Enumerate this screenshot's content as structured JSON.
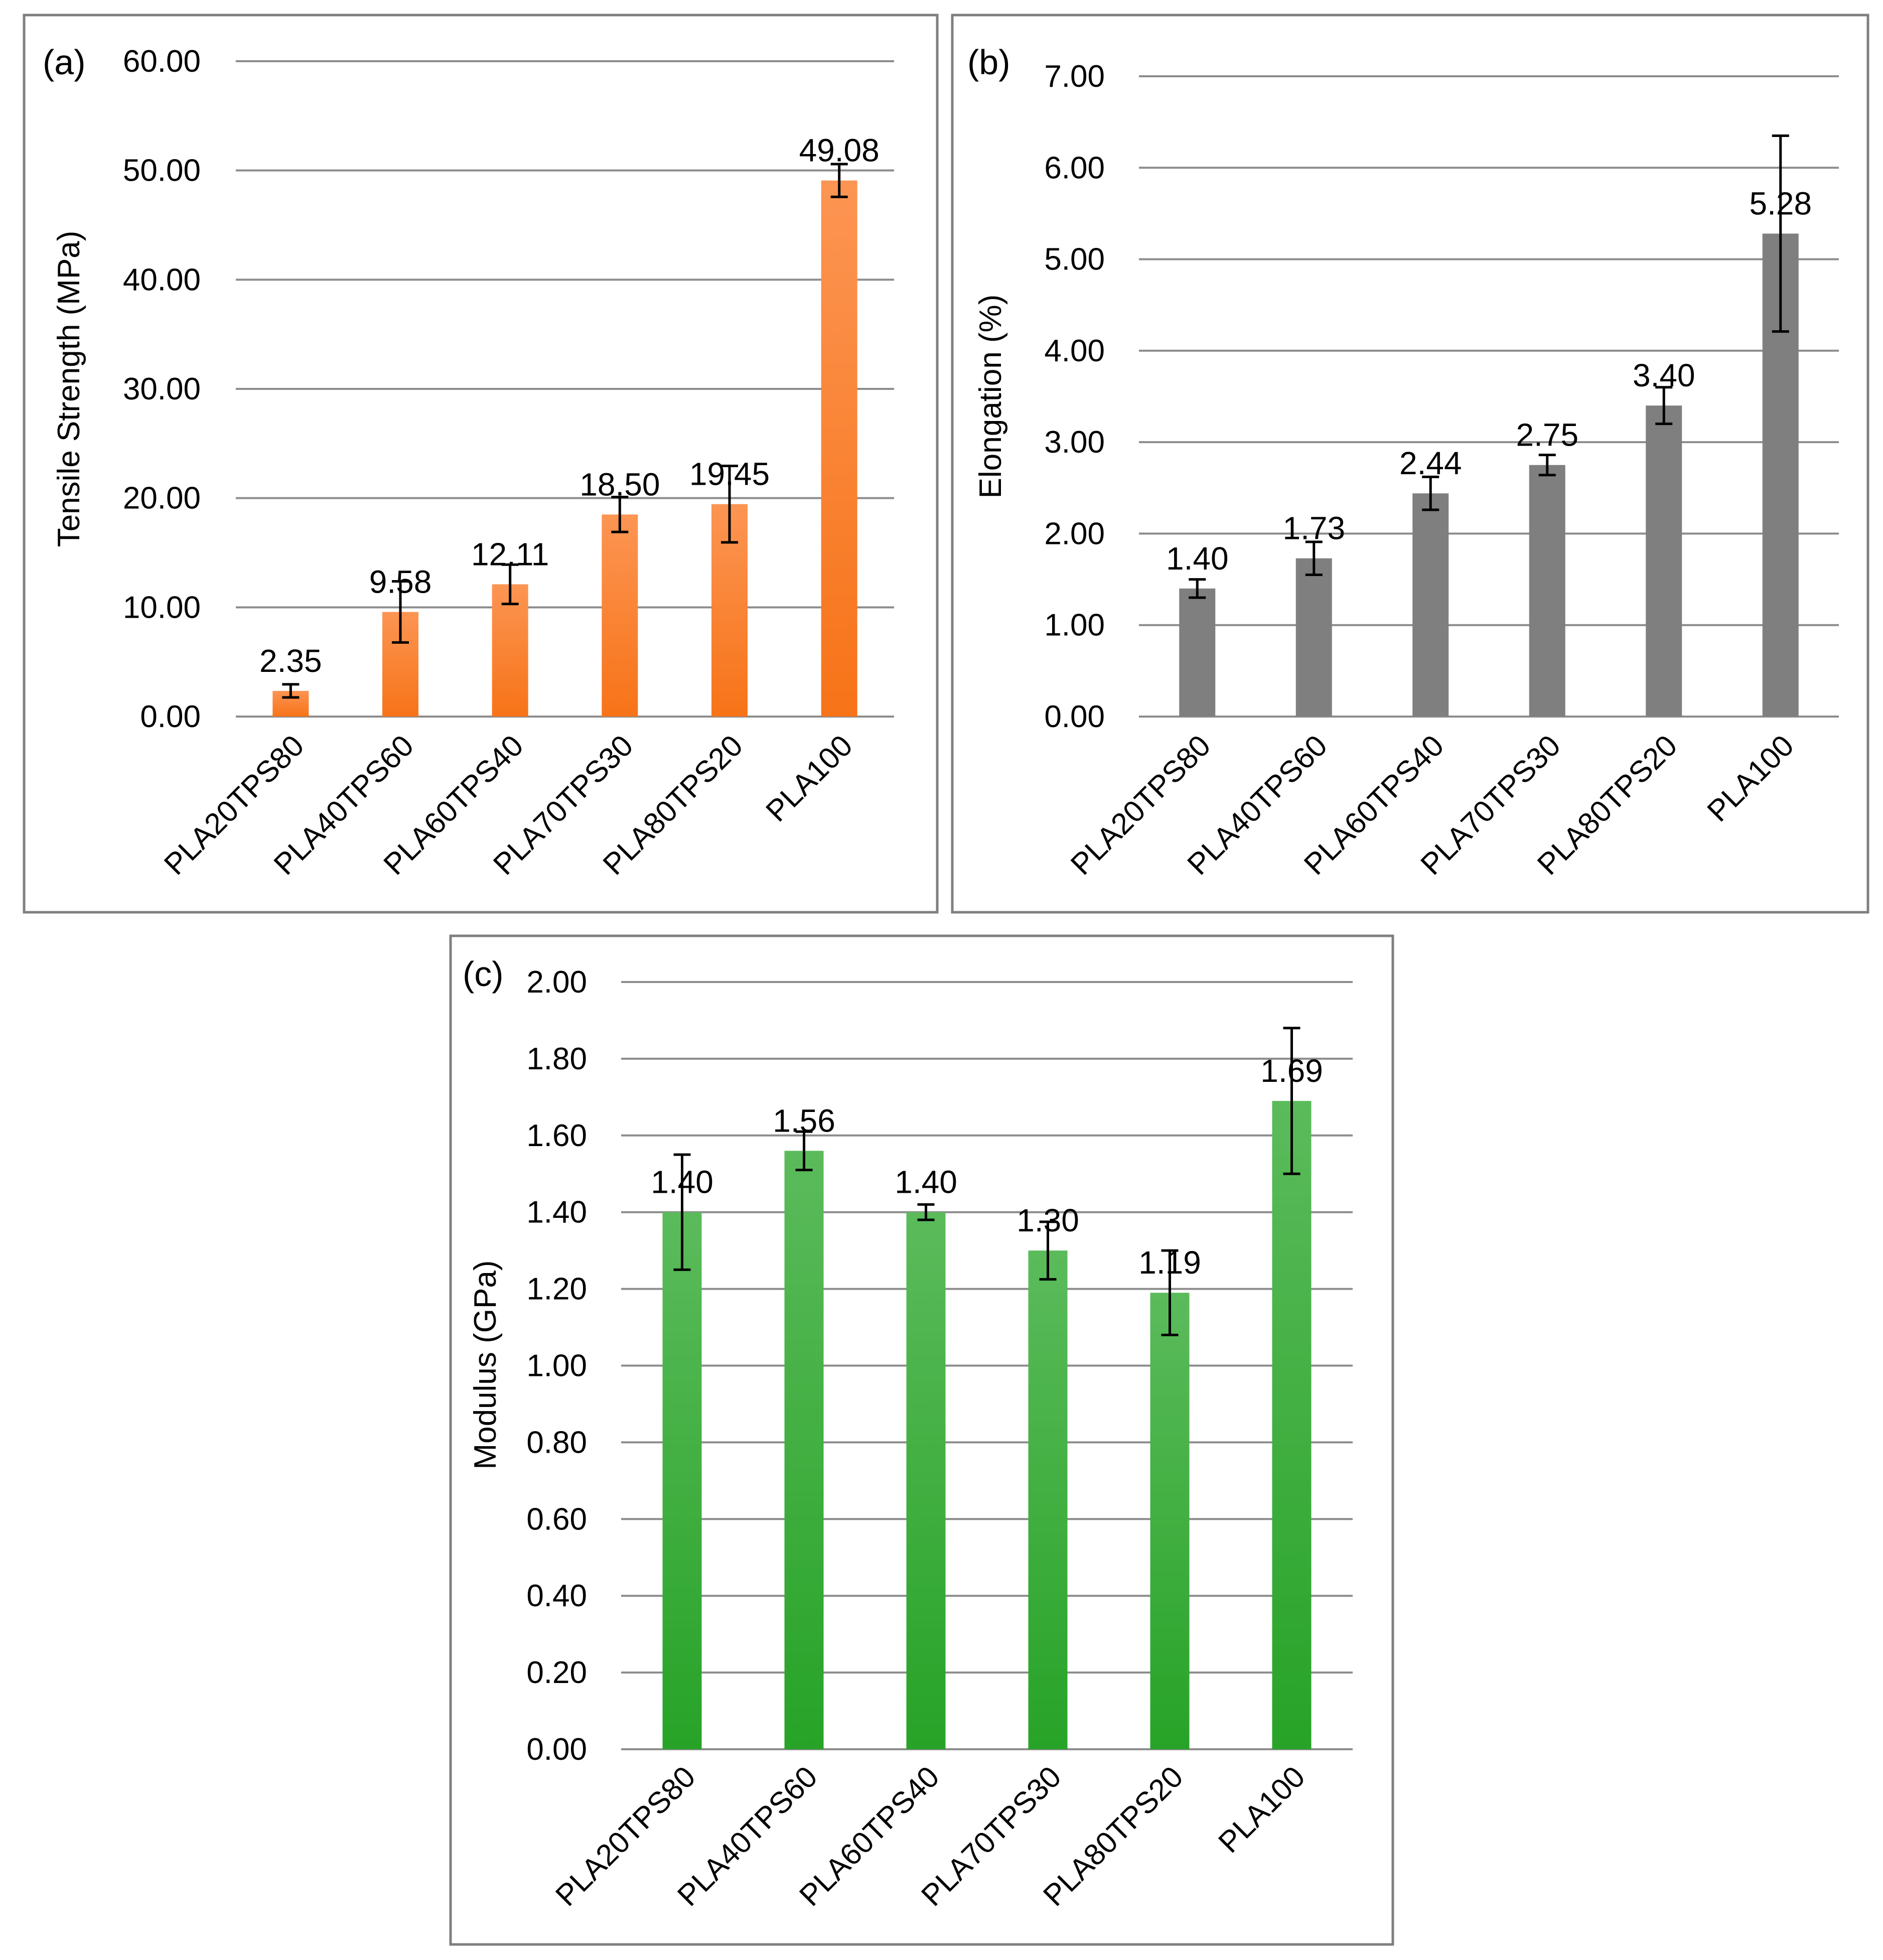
{
  "chart_data": [
    {
      "panel": "(a)",
      "type": "bar",
      "title": "",
      "ylabel": "Tensile Strength (MPa)",
      "xlabel": "",
      "categories": [
        "PLA20TPS80",
        "PLA40TPS60",
        "PLA60TPS40",
        "PLA70TPS30",
        "PLA80TPS20",
        "PLA100"
      ],
      "values": [
        2.35,
        9.58,
        12.11,
        18.5,
        19.45,
        49.08
      ],
      "value_labels": [
        "2.35",
        "9.58",
        "12.11",
        "18.50",
        "19.45",
        "49.08"
      ],
      "error": [
        0.6,
        2.8,
        1.8,
        1.6,
        3.5,
        1.5
      ],
      "ylim": [
        0,
        60
      ],
      "yticks": [
        0,
        10,
        20,
        30,
        40,
        50,
        60
      ],
      "ytick_labels": [
        "0.00",
        "10.00",
        "20.00",
        "30.00",
        "40.00",
        "50.00",
        "60.00"
      ],
      "grid": true,
      "color_top": "#fc9553",
      "color_bottom": "#f77318"
    },
    {
      "panel": "(b)",
      "type": "bar",
      "title": "",
      "ylabel": "Elongation (%)",
      "xlabel": "",
      "categories": [
        "PLA20TPS80",
        "PLA40TPS60",
        "PLA60TPS40",
        "PLA70TPS30",
        "PLA80TPS20",
        "PLA100"
      ],
      "values": [
        1.4,
        1.73,
        2.44,
        2.75,
        3.4,
        5.28
      ],
      "value_labels": [
        "1.40",
        "1.73",
        "2.44",
        "2.75",
        "3.40",
        "5.28"
      ],
      "error": [
        0.1,
        0.18,
        0.18,
        0.11,
        0.2,
        1.07
      ],
      "ylim": [
        0,
        7
      ],
      "yticks": [
        0,
        1,
        2,
        3,
        4,
        5,
        6,
        7
      ],
      "ytick_labels": [
        "0.00",
        "1.00",
        "2.00",
        "3.00",
        "4.00",
        "5.00",
        "6.00",
        "7.00"
      ],
      "grid": true,
      "color_top": "#7f7f7f",
      "color_bottom": "#7f7f7f"
    },
    {
      "panel": "(c)",
      "type": "bar",
      "title": "",
      "ylabel": "Modulus (GPa)",
      "xlabel": "",
      "categories": [
        "PLA20TPS80",
        "PLA40TPS60",
        "PLA60TPS40",
        "PLA70TPS30",
        "PLA80TPS20",
        "PLA100"
      ],
      "values": [
        1.4,
        1.56,
        1.4,
        1.3,
        1.19,
        1.69
      ],
      "value_labels": [
        "1.40",
        "1.56",
        "1.40",
        "1.30",
        "1.19",
        "1.69"
      ],
      "error": [
        0.15,
        0.05,
        0.02,
        0.075,
        0.11,
        0.19
      ],
      "ylim": [
        0,
        2
      ],
      "yticks": [
        0,
        0.2,
        0.4,
        0.6,
        0.8,
        1.0,
        1.2,
        1.4,
        1.6,
        1.8,
        2.0
      ],
      "ytick_labels": [
        "0.00",
        "0.20",
        "0.40",
        "0.60",
        "0.80",
        "1.00",
        "1.20",
        "1.40",
        "1.60",
        "1.80",
        "2.00"
      ],
      "grid": true,
      "color_top": "#5bbb5b",
      "color_bottom": "#27a327"
    }
  ]
}
